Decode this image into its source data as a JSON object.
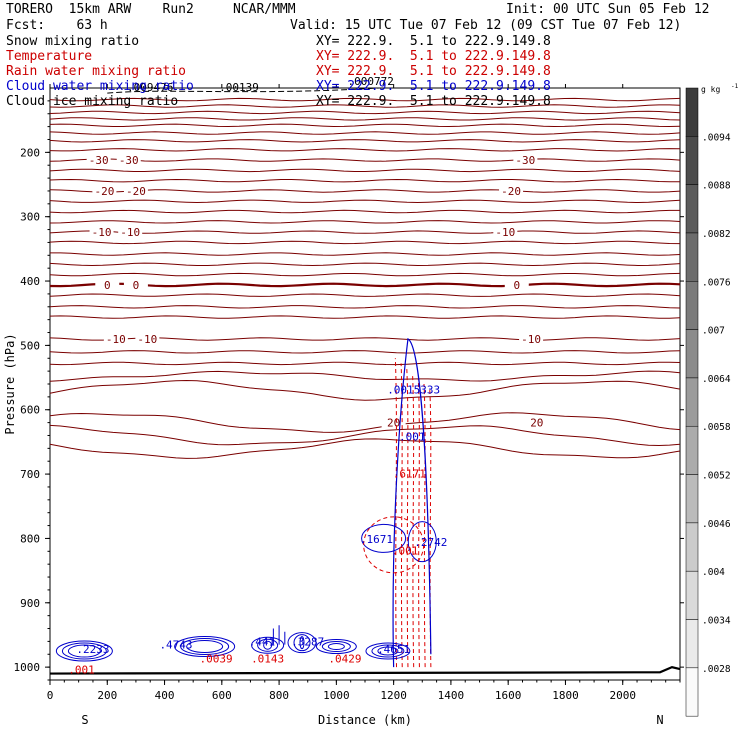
{
  "header": {
    "model": "TORERO  15km ARW    Run2     NCAR/MMM",
    "init": "Init: 00 UTC Sun 05 Feb 12",
    "fcst": "Fcst:    63 h",
    "valid": "Valid: 15 UTC Tue 07 Feb 12 (09 CST Tue 07 Feb 12)"
  },
  "legend": [
    {
      "name": "Snow mixing ratio",
      "xy": "XY= 222.9.  5.1 to 222.9.149.8",
      "color": "#000000"
    },
    {
      "name": "Temperature",
      "xy": "XY= 222.9.  5.1 to 222.9.149.8",
      "color": "#cc0000"
    },
    {
      "name": "Rain water mixing ratio",
      "xy": "XY= 222.9.  5.1 to 222.9.149.8",
      "color": "#cc0000"
    },
    {
      "name": "Cloud water mixing ratio",
      "xy": "XY= 222.9.  5.1 to 222.9.149.8",
      "color": "#0000cc"
    },
    {
      "name": "Cloud ice mixing ratio",
      "xy": "XY= 222.9.  5.1 to 222.9.149.8",
      "color": "#000000"
    }
  ],
  "colors": {
    "temperature": "#7a0000",
    "rain": "#dd0000",
    "cloud_water": "#0000cc",
    "snow": "#000000",
    "frame": "#000000"
  },
  "chart_data": {
    "type": "contour-cross-section",
    "xlabel": "Distance (km)",
    "ylabel": "Pressure (hPa)",
    "xlim": [
      0,
      2200
    ],
    "ylim": [
      1020,
      100
    ],
    "x_ticks": [
      0,
      200,
      400,
      600,
      800,
      1000,
      1200,
      1400,
      1600,
      1800,
      2000
    ],
    "y_ticks": [
      200,
      300,
      400,
      500,
      600,
      700,
      800,
      900,
      1000
    ],
    "end_labels": [
      "S",
      "N"
    ],
    "colorbar": {
      "unit": "g kg",
      "unit_exp": "-1",
      "values": [
        ".0094",
        ".0088",
        ".0082",
        ".0076",
        ".007",
        ".0064",
        ".0058",
        ".0052",
        ".0046",
        ".004",
        ".0034",
        ".0028"
      ]
    },
    "temperature_contours": [
      {
        "p": 118
      },
      {
        "p": 128
      },
      {
        "p": 138
      },
      {
        "p": 148
      },
      {
        "p": 158
      },
      {
        "p": 170
      },
      {
        "p": 182
      },
      {
        "p": 196
      },
      {
        "p": 212,
        "label": "-30",
        "label_x": [
          170,
          275,
          1660
        ]
      },
      {
        "p": 228
      },
      {
        "p": 244
      },
      {
        "p": 260,
        "label": "-20",
        "label_x": [
          190,
          300,
          1610
        ]
      },
      {
        "p": 276
      },
      {
        "p": 292
      },
      {
        "p": 308
      },
      {
        "p": 324,
        "label": "-10",
        "label_x": [
          180,
          280,
          1590
        ]
      },
      {
        "p": 340
      },
      {
        "p": 358
      },
      {
        "p": 374
      },
      {
        "p": 390
      },
      {
        "p": 406,
        "label": "0",
        "label_x": [
          200,
          300,
          1630
        ]
      },
      {
        "p": 422
      },
      {
        "p": 440
      },
      {
        "p": 456
      },
      {
        "p": 490,
        "label": "-10",
        "label_x": [
          230,
          340,
          1680
        ]
      },
      {
        "p": 510
      },
      {
        "p": 528
      },
      {
        "p": 548
      },
      {
        "p": 570
      },
      {
        "p": 620,
        "label": "20",
        "label_x": [
          1200,
          1700
        ]
      },
      {
        "p": 640
      },
      {
        "p": 660
      }
    ],
    "max_labels": [
      {
        "text": ".0015333",
        "x": 1270,
        "p": 575,
        "color": "#0000cc"
      },
      {
        "text": ".001",
        "x": 1265,
        "p": 648,
        "color": "#0000cc"
      },
      {
        "text": ".6171",
        "x": 1255,
        "p": 705,
        "color": "#dd0000"
      },
      {
        "text": ".1671",
        "x": 1140,
        "p": 807,
        "color": "#0000cc"
      },
      {
        "text": ".001",
        "x": 1240,
        "p": 825,
        "color": "#dd0000"
      },
      {
        "text": ".2742",
        "x": 1330,
        "p": 812,
        "color": "#0000cc"
      },
      {
        "text": ".4743",
        "x": 440,
        "p": 971,
        "color": "#0000cc"
      },
      {
        "text": ".441",
        "x": 740,
        "p": 966,
        "color": "#0000cc"
      },
      {
        "text": ".3287",
        "x": 900,
        "p": 966,
        "color": "#0000cc"
      },
      {
        "text": ".4651",
        "x": 1200,
        "p": 978,
        "color": "#0000cc"
      },
      {
        "text": ".0039",
        "x": 580,
        "p": 993,
        "color": "#dd0000"
      },
      {
        "text": ".0143",
        "x": 760,
        "p": 993,
        "color": "#dd0000"
      },
      {
        "text": ".0429",
        "x": 1030,
        "p": 993,
        "color": "#dd0000"
      },
      {
        "text": ".2233",
        "x": 150,
        "p": 978,
        "color": "#0000cc"
      },
      {
        "text": ".001",
        "x": 110,
        "p": 1010,
        "color": "#dd0000"
      },
      {
        "text": ".009476",
        "x": 350,
        "p": 105,
        "color": "#000000"
      },
      {
        "text": ".00139",
        "x": 660,
        "p": 105,
        "color": "#000000"
      },
      {
        "text": ".000772",
        "x": 1120,
        "p": 95,
        "color": "#000000"
      }
    ]
  }
}
